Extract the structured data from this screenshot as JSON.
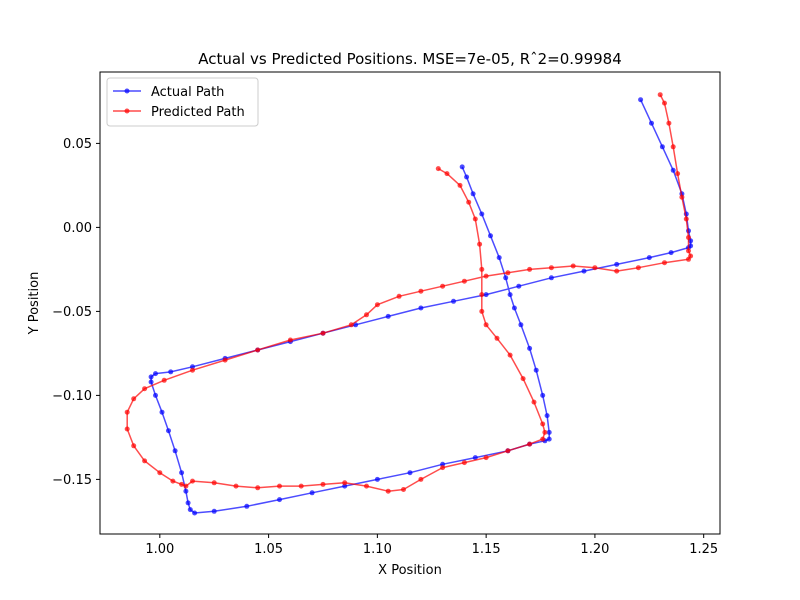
{
  "chart_data": {
    "type": "line",
    "title": "Actual vs Predicted Positions. MSE=7e-05, Rˆ2=0.99984",
    "xlabel": "X Position",
    "ylabel": "Y Position",
    "xlim": [
      0.9725,
      1.2575
    ],
    "ylim": [
      -0.1825,
      0.0925
    ],
    "xticks": [
      1.0,
      1.05,
      1.1,
      1.15,
      1.2,
      1.25
    ],
    "xtick_labels": [
      "1.00",
      "1.05",
      "1.10",
      "1.15",
      "1.20",
      "1.25"
    ],
    "yticks": [
      -0.15,
      -0.1,
      -0.05,
      0.0,
      0.05
    ],
    "ytick_labels": [
      "−0.15",
      "−0.10",
      "−0.05",
      "0.00",
      "0.05"
    ],
    "grid": false,
    "legend_position": "top-left",
    "series": [
      {
        "name": "Actual Path",
        "color": "#0000ff",
        "marker": "circle",
        "points": [
          [
            1.221,
            0.076
          ],
          [
            1.226,
            0.062
          ],
          [
            1.231,
            0.048
          ],
          [
            1.236,
            0.034
          ],
          [
            1.24,
            0.02
          ],
          [
            1.242,
            0.008
          ],
          [
            1.243,
            -0.002
          ],
          [
            1.244,
            -0.008
          ],
          [
            1.244,
            -0.011
          ],
          [
            1.243,
            -0.012
          ],
          [
            1.235,
            -0.015
          ],
          [
            1.225,
            -0.018
          ],
          [
            1.21,
            -0.022
          ],
          [
            1.195,
            -0.026
          ],
          [
            1.18,
            -0.03
          ],
          [
            1.165,
            -0.035
          ],
          [
            1.15,
            -0.04
          ],
          [
            1.135,
            -0.044
          ],
          [
            1.12,
            -0.048
          ],
          [
            1.105,
            -0.053
          ],
          [
            1.09,
            -0.058
          ],
          [
            1.075,
            -0.063
          ],
          [
            1.06,
            -0.068
          ],
          [
            1.045,
            -0.073
          ],
          [
            1.03,
            -0.078
          ],
          [
            1.015,
            -0.083
          ],
          [
            1.005,
            -0.086
          ],
          [
            0.998,
            -0.087
          ],
          [
            0.996,
            -0.089
          ],
          [
            0.996,
            -0.092
          ],
          [
            0.998,
            -0.1
          ],
          [
            1.001,
            -0.11
          ],
          [
            1.004,
            -0.121
          ],
          [
            1.007,
            -0.133
          ],
          [
            1.01,
            -0.146
          ],
          [
            1.012,
            -0.157
          ],
          [
            1.013,
            -0.164
          ],
          [
            1.014,
            -0.168
          ],
          [
            1.016,
            -0.17
          ],
          [
            1.025,
            -0.169
          ],
          [
            1.04,
            -0.166
          ],
          [
            1.055,
            -0.162
          ],
          [
            1.07,
            -0.158
          ],
          [
            1.085,
            -0.154
          ],
          [
            1.1,
            -0.15
          ],
          [
            1.115,
            -0.146
          ],
          [
            1.13,
            -0.141
          ],
          [
            1.145,
            -0.137
          ],
          [
            1.16,
            -0.133
          ],
          [
            1.17,
            -0.129
          ],
          [
            1.177,
            -0.127
          ],
          [
            1.179,
            -0.126
          ],
          [
            1.179,
            -0.122
          ],
          [
            1.178,
            -0.112
          ],
          [
            1.176,
            -0.1
          ],
          [
            1.173,
            -0.085
          ],
          [
            1.17,
            -0.072
          ],
          [
            1.166,
            -0.058
          ],
          [
            1.163,
            -0.048
          ],
          [
            1.161,
            -0.04
          ],
          [
            1.159,
            -0.03
          ],
          [
            1.156,
            -0.018
          ],
          [
            1.152,
            -0.005
          ],
          [
            1.148,
            0.008
          ],
          [
            1.144,
            0.02
          ],
          [
            1.141,
            0.03
          ],
          [
            1.139,
            0.036
          ]
        ]
      },
      {
        "name": "Predicted Path",
        "color": "#ff0000",
        "marker": "circle",
        "points": [
          [
            1.23,
            0.079
          ],
          [
            1.232,
            0.074
          ],
          [
            1.234,
            0.062
          ],
          [
            1.236,
            0.048
          ],
          [
            1.238,
            0.032
          ],
          [
            1.24,
            0.018
          ],
          [
            1.242,
            0.005
          ],
          [
            1.243,
            -0.006
          ],
          [
            1.243,
            -0.014
          ],
          [
            1.244,
            -0.017
          ],
          [
            1.243,
            -0.019
          ],
          [
            1.232,
            -0.021
          ],
          [
            1.22,
            -0.024
          ],
          [
            1.21,
            -0.026
          ],
          [
            1.2,
            -0.024
          ],
          [
            1.19,
            -0.023
          ],
          [
            1.18,
            -0.024
          ],
          [
            1.17,
            -0.025
          ],
          [
            1.16,
            -0.027
          ],
          [
            1.15,
            -0.029
          ],
          [
            1.14,
            -0.032
          ],
          [
            1.13,
            -0.035
          ],
          [
            1.12,
            -0.038
          ],
          [
            1.11,
            -0.041
          ],
          [
            1.1,
            -0.046
          ],
          [
            1.095,
            -0.052
          ],
          [
            1.088,
            -0.058
          ],
          [
            1.075,
            -0.063
          ],
          [
            1.06,
            -0.067
          ],
          [
            1.045,
            -0.073
          ],
          [
            1.03,
            -0.079
          ],
          [
            1.015,
            -0.085
          ],
          [
            1.002,
            -0.091
          ],
          [
            0.993,
            -0.096
          ],
          [
            0.988,
            -0.102
          ],
          [
            0.985,
            -0.11
          ],
          [
            0.985,
            -0.12
          ],
          [
            0.988,
            -0.13
          ],
          [
            0.993,
            -0.139
          ],
          [
            1.0,
            -0.146
          ],
          [
            1.006,
            -0.151
          ],
          [
            1.01,
            -0.153
          ],
          [
            1.012,
            -0.154
          ],
          [
            1.015,
            -0.151
          ],
          [
            1.025,
            -0.152
          ],
          [
            1.035,
            -0.154
          ],
          [
            1.045,
            -0.155
          ],
          [
            1.055,
            -0.154
          ],
          [
            1.065,
            -0.154
          ],
          [
            1.075,
            -0.153
          ],
          [
            1.085,
            -0.152
          ],
          [
            1.095,
            -0.154
          ],
          [
            1.105,
            -0.157
          ],
          [
            1.112,
            -0.156
          ],
          [
            1.12,
            -0.15
          ],
          [
            1.13,
            -0.143
          ],
          [
            1.14,
            -0.14
          ],
          [
            1.15,
            -0.137
          ],
          [
            1.16,
            -0.133
          ],
          [
            1.17,
            -0.129
          ],
          [
            1.176,
            -0.126
          ],
          [
            1.177,
            -0.122
          ],
          [
            1.176,
            -0.117
          ],
          [
            1.172,
            -0.104
          ],
          [
            1.167,
            -0.09
          ],
          [
            1.161,
            -0.076
          ],
          [
            1.155,
            -0.066
          ],
          [
            1.15,
            -0.058
          ],
          [
            1.148,
            -0.05
          ],
          [
            1.148,
            -0.04
          ],
          [
            1.148,
            -0.025
          ],
          [
            1.147,
            -0.01
          ],
          [
            1.145,
            0.005
          ],
          [
            1.142,
            0.015
          ],
          [
            1.138,
            0.025
          ],
          [
            1.132,
            0.032
          ],
          [
            1.128,
            0.035
          ]
        ]
      }
    ]
  }
}
